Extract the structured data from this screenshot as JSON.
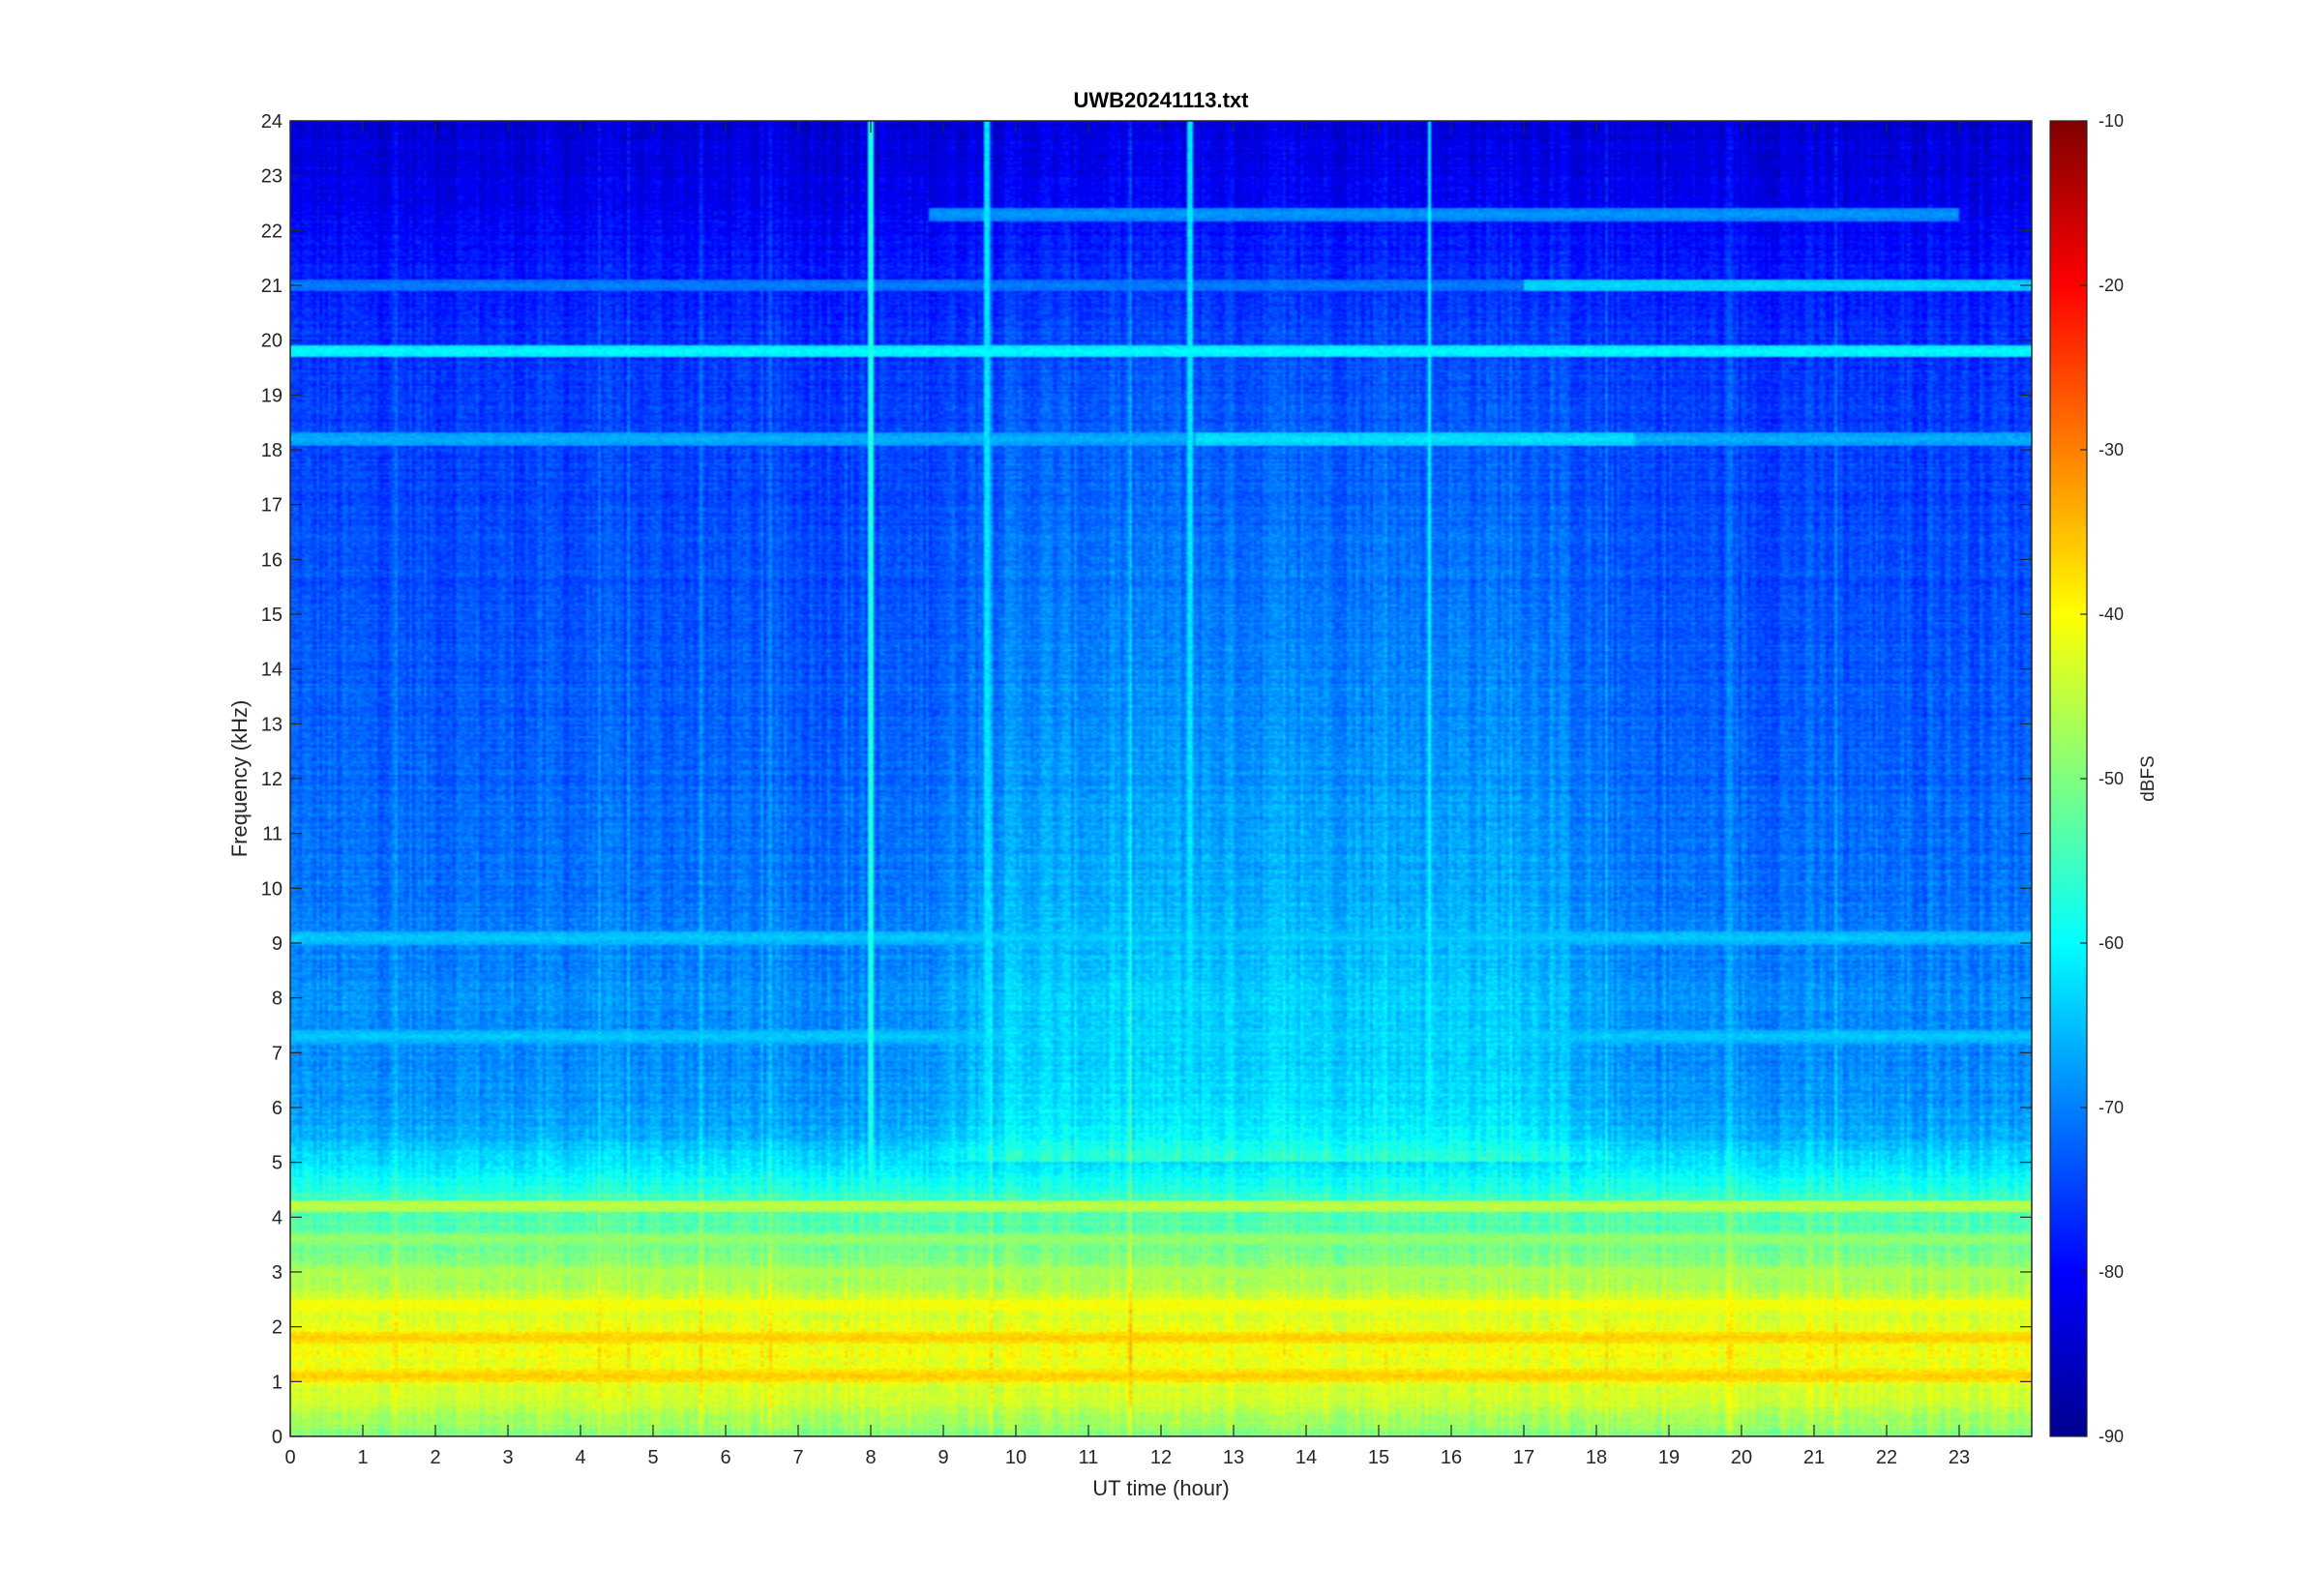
{
  "chart_data": {
    "type": "heatmap",
    "title": "UWB20241113.txt",
    "xlabel": "UT time (hour)",
    "ylabel": "Frequency (kHz)",
    "xlim": [
      0,
      24
    ],
    "ylim": [
      0,
      24
    ],
    "x_ticks": [
      0,
      1,
      2,
      3,
      4,
      5,
      6,
      7,
      8,
      9,
      10,
      11,
      12,
      13,
      14,
      15,
      16,
      17,
      18,
      19,
      20,
      21,
      22,
      23
    ],
    "y_ticks": [
      0,
      1,
      2,
      3,
      4,
      5,
      6,
      7,
      8,
      9,
      10,
      11,
      12,
      13,
      14,
      15,
      16,
      17,
      18,
      19,
      20,
      21,
      22,
      23,
      24
    ],
    "colorbar": {
      "label": "dBFS",
      "range": [
        -90,
        -10
      ],
      "ticks": [
        -10,
        -20,
        -30,
        -40,
        -50,
        -60,
        -70,
        -80,
        -90
      ],
      "colormap": "jet"
    },
    "grid": false,
    "background_profile": {
      "freq_khz": [
        0,
        0.5,
        1.0,
        1.5,
        2.0,
        2.5,
        3.0,
        3.5,
        4.0,
        4.5,
        5.0,
        5.5,
        6.0,
        7.0,
        8.0,
        9.0,
        10.0,
        12.0,
        14.0,
        16.0,
        18.0,
        20.0,
        21.0,
        22.0,
        23.0,
        24.0
      ],
      "level_dbfs": [
        -50,
        -45,
        -42,
        -41,
        -42,
        -44,
        -48,
        -52,
        -54,
        -57,
        -62,
        -66,
        -68,
        -69,
        -69,
        -70,
        -71,
        -72,
        -73,
        -74,
        -75,
        -76,
        -78,
        -80,
        -82,
        -83
      ]
    },
    "day_enhancement": {
      "start_hour": 8.5,
      "end_hour": 18.5,
      "boost_db": 6
    },
    "horizontal_lines": [
      {
        "freq_khz": 19.8,
        "level_dbfs": -60,
        "start_hour": 0,
        "end_hour": 24
      },
      {
        "freq_khz": 18.2,
        "level_dbfs": -66,
        "start_hour": 0,
        "end_hour": 24
      },
      {
        "freq_khz": 18.2,
        "level_dbfs": -62,
        "start_hour": 12.5,
        "end_hour": 18.5
      },
      {
        "freq_khz": 22.3,
        "level_dbfs": -68,
        "start_hour": 8.8,
        "end_hour": 23.0
      },
      {
        "freq_khz": 21.0,
        "level_dbfs": -70,
        "start_hour": 0,
        "end_hour": 24
      },
      {
        "freq_khz": 21.0,
        "level_dbfs": -63,
        "start_hour": 17.0,
        "end_hour": 24
      },
      {
        "freq_khz": 9.1,
        "level_dbfs": -64,
        "start_hour": 0,
        "end_hour": 24
      },
      {
        "freq_khz": 7.3,
        "level_dbfs": -64,
        "start_hour": 0,
        "end_hour": 24
      },
      {
        "freq_khz": 4.2,
        "level_dbfs": -45,
        "start_hour": 0,
        "end_hour": 24
      },
      {
        "freq_khz": 3.6,
        "level_dbfs": -48,
        "start_hour": 0,
        "end_hour": 24
      },
      {
        "freq_khz": 3.0,
        "level_dbfs": -46,
        "start_hour": 0,
        "end_hour": 24
      },
      {
        "freq_khz": 2.4,
        "level_dbfs": -40,
        "start_hour": 0,
        "end_hour": 24
      },
      {
        "freq_khz": 1.8,
        "level_dbfs": -36,
        "start_hour": 0,
        "end_hour": 24
      },
      {
        "freq_khz": 1.1,
        "level_dbfs": -36,
        "start_hour": 0,
        "end_hour": 24
      },
      {
        "freq_khz": 0.7,
        "level_dbfs": -44,
        "start_hour": 0,
        "end_hour": 24
      }
    ],
    "vertical_spikes": [
      {
        "hour": 8.0,
        "level_dbfs": -58
      },
      {
        "hour": 9.6,
        "level_dbfs": -62
      },
      {
        "hour": 12.4,
        "level_dbfs": -62
      },
      {
        "hour": 15.7,
        "level_dbfs": -60
      }
    ]
  }
}
